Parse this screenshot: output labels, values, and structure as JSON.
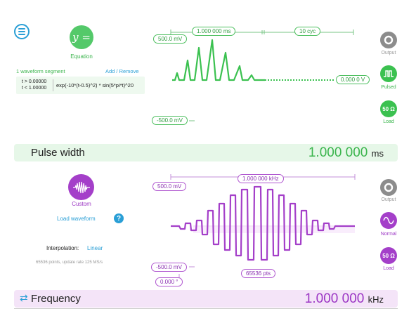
{
  "colors": {
    "green": "#3bc150",
    "purple": "#a43fc9",
    "blue": "#2a9fd6",
    "grey": "#8c8c8c"
  },
  "menu": {
    "icon": "hamburger-menu-icon"
  },
  "top": {
    "mode_symbol": "y =",
    "mode_label": "Equation",
    "segments_label": "1 waveform segment",
    "add_remove_label": "Add / Remove",
    "segment": {
      "t_start": "t > 0.00000",
      "t_end": "t < 1.00000",
      "expression": "exp(-10*(t-0.5)^2) * sin(5*pi*t)^20"
    },
    "scope": {
      "time_label": "1.000 000 ms",
      "cycles_label": "10 cyc",
      "vmax_label": "500.0 mV",
      "vmin_label": "-500.0 mV",
      "offset_label": "0.000 0 V"
    },
    "buttons": [
      {
        "label": "Output",
        "icon": "power-icon",
        "color": "grey"
      },
      {
        "label": "Pulsed",
        "icon": "pulse-wave-icon",
        "color": "green"
      },
      {
        "label": "Load",
        "icon": "50-ohm-load-icon",
        "text": "50 Ω",
        "color": "green"
      }
    ],
    "param_bar": {
      "title": "Pulse width",
      "value": "1.000 000",
      "unit": "ms"
    }
  },
  "bottom": {
    "mode_label": "Custom",
    "load_waveform_label": "Load waveform",
    "help_icon": "question-mark-icon",
    "interpolation_label": "Interpolation:",
    "interpolation_value": "Linear",
    "points_info": "65536 points, update rate 125 MS/s",
    "scope": {
      "freq_label": "1.000 000 kHz",
      "vmax_label": "500.0 mV",
      "vmin_label": "-500.0 mV",
      "phase_label": "0.000 °",
      "points_label": "65536 pts"
    },
    "buttons": [
      {
        "label": "Output",
        "icon": "power-icon",
        "color": "grey"
      },
      {
        "label": "Normal",
        "icon": "sine-wave-icon",
        "color": "purple"
      },
      {
        "label": "Load",
        "icon": "50-ohm-load-icon",
        "text": "50 Ω",
        "color": "purple"
      }
    ],
    "param_bar": {
      "title": "Frequency",
      "icon": "swap-arrows-icon",
      "value": "1.000 000",
      "unit": "kHz"
    }
  }
}
